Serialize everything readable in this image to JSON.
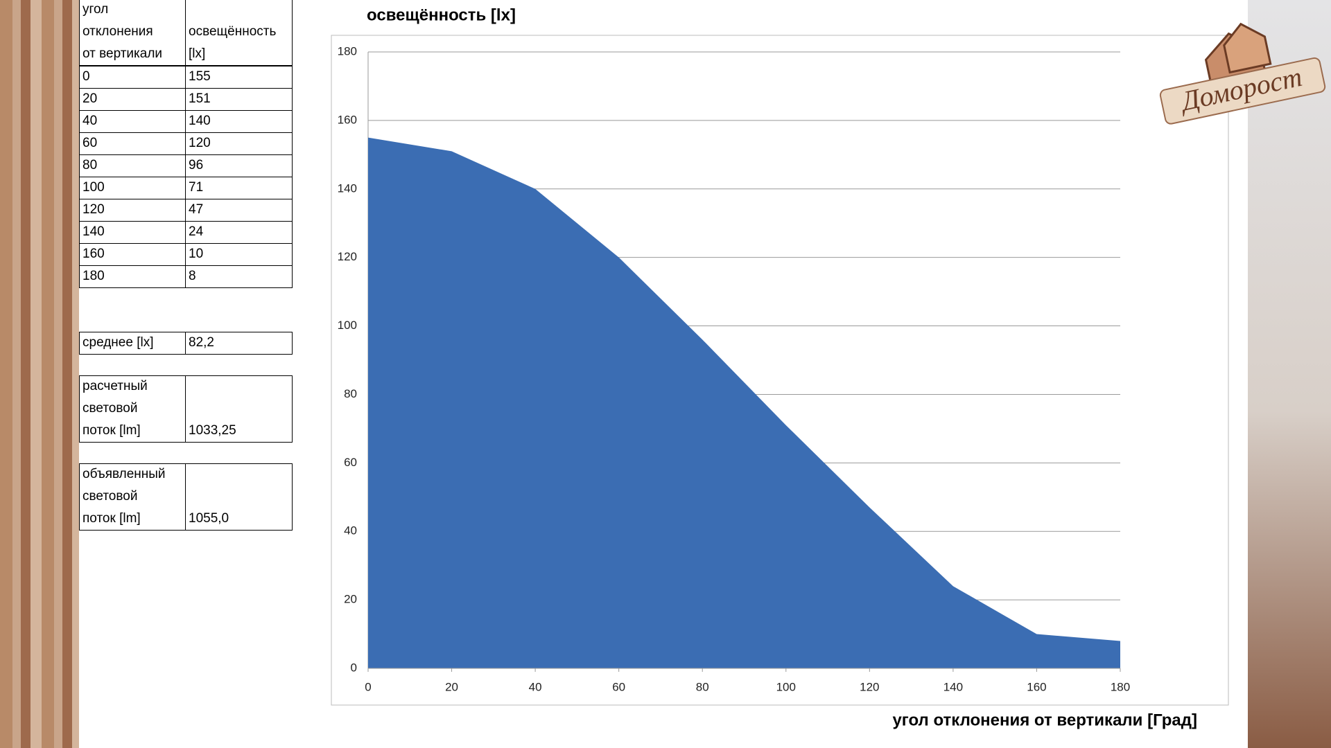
{
  "table": {
    "header": [
      [
        "угол",
        "отклонения",
        "от вертикали"
      ],
      [
        "освещённость",
        "[lx]"
      ]
    ],
    "rows": [
      [
        "0",
        "155"
      ],
      [
        "20",
        "151"
      ],
      [
        "40",
        "140"
      ],
      [
        "60",
        "120"
      ],
      [
        "80",
        "96"
      ],
      [
        "100",
        "71"
      ],
      [
        "120",
        "47"
      ],
      [
        "140",
        "24"
      ],
      [
        "160",
        "10"
      ],
      [
        "180",
        "8"
      ]
    ],
    "summary": [
      {
        "label": [
          "среднее  [lx]"
        ],
        "value": "82,2"
      },
      {
        "label": [
          "расчетный",
          "световой",
          "поток  [lm]"
        ],
        "value": "1033,25"
      },
      {
        "label": [
          "объявленный",
          "световой",
          "поток  [lm]"
        ],
        "value": "1055,0"
      }
    ]
  },
  "logo": "Доморост",
  "chart_data": {
    "type": "area",
    "title": "освещённость [lx]",
    "x_label": "угол отклонения от вертикали  [Град]",
    "x": [
      0,
      20,
      40,
      60,
      80,
      100,
      120,
      140,
      160,
      180
    ],
    "values": [
      155,
      151,
      140,
      120,
      96,
      71,
      47,
      24,
      10,
      8
    ],
    "color": "#3b6db3",
    "xlim": [
      0,
      180
    ],
    "xticks": [
      0,
      20,
      40,
      60,
      80,
      100,
      120,
      140,
      160,
      180
    ],
    "ylim": [
      0,
      180
    ],
    "yticks": [
      0,
      20,
      40,
      60,
      80,
      100,
      120,
      140,
      160,
      180
    ],
    "grid": true
  }
}
